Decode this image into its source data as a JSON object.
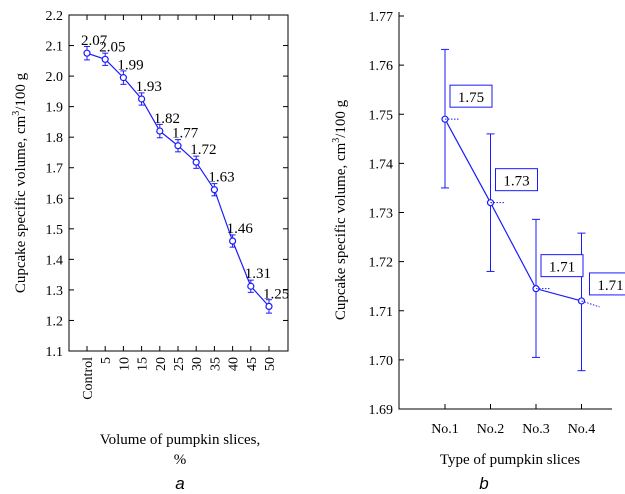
{
  "chart_data": [
    {
      "type": "line",
      "panel": "a",
      "xlabel": "Volume of pumpkin slices,",
      "xlabel_line2": "%",
      "ylabel": "Cupcake specific volume, cm",
      "ylabel_sup": "3",
      "ylabel_suffix": "/100 g",
      "ylim": [
        1.1,
        2.2
      ],
      "yticks": [
        "1.1",
        "1.2",
        "1.3",
        "1.4",
        "1.5",
        "1.6",
        "1.7",
        "1.8",
        "1.9",
        "2.0",
        "2.1",
        "2.2"
      ],
      "categories": [
        "Control",
        "5",
        "10",
        "15",
        "20",
        "25",
        "30",
        "35",
        "40",
        "45",
        "50"
      ],
      "values": [
        2.075,
        2.055,
        1.995,
        1.925,
        1.82,
        1.772,
        1.718,
        1.628,
        1.46,
        1.312,
        1.246
      ],
      "errors": [
        0.022,
        0.02,
        0.022,
        0.02,
        0.022,
        0.02,
        0.02,
        0.02,
        0.02,
        0.02,
        0.022
      ],
      "data_labels": [
        "2.07",
        "2.05",
        "1.99",
        "1.93",
        "1.82",
        "1.77",
        "1.72",
        "1.63",
        "1.46",
        "1.31",
        "1.25"
      ],
      "grid": false,
      "color": "#1a1aff"
    },
    {
      "type": "line",
      "panel": "b",
      "xlabel": "Type of pumpkin slices",
      "ylabel": "Cupcake specific volume, cm",
      "ylabel_sup": "3",
      "ylabel_suffix": "/100 g",
      "ylim": [
        1.69,
        1.77
      ],
      "yticks": [
        "1.69",
        "1.70",
        "1.71",
        "1.72",
        "1.73",
        "1.74",
        "1.75",
        "1.76",
        "1.77"
      ],
      "categories": [
        "No.1",
        "No.2",
        "No.3",
        "No.4"
      ],
      "values": [
        1.749,
        1.732,
        1.7145,
        1.712
      ],
      "err_low": [
        1.735,
        1.718,
        1.7005,
        1.6978
      ],
      "err_high": [
        1.7632,
        1.746,
        1.7286,
        1.7258
      ],
      "data_labels": [
        "1.75",
        "1.73",
        "1.71",
        "1.71"
      ],
      "grid": false,
      "color": "#1a1aff"
    }
  ]
}
